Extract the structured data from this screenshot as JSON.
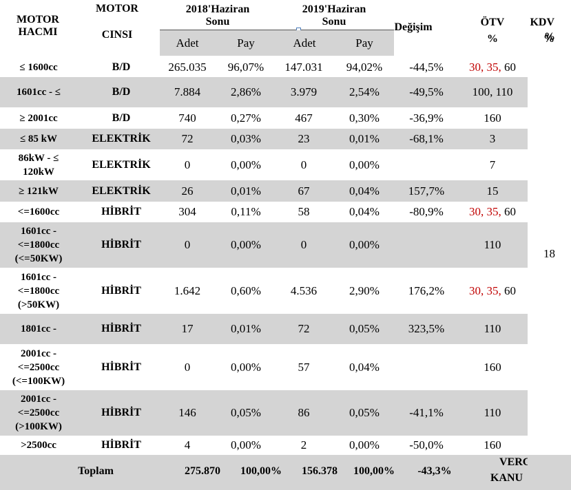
{
  "header": {
    "motor_hacmi": "MOTOR\nHACMI",
    "motor_cinsi_1": "MOTOR",
    "motor_cinsi_2": "CINSI",
    "year1": "2018'Haziran\nSonu",
    "year2": "2019'Haziran\nSonu",
    "degisim": "Değişim",
    "otv": "ÖTV\n%",
    "kdv": "KDV\n%",
    "adet": "Adet",
    "pay": "Pay"
  },
  "rows": [
    {
      "motor": "≤ 1600cc",
      "cinsi": "B/D",
      "adet1": "265.035",
      "pay1": "96,07%",
      "adet2": "147.031",
      "pay2": "94,02%",
      "degisim": "-44,5%",
      "otv_red": "30, 35,",
      "otv": " 60"
    },
    {
      "motor": "1601cc - ≤",
      "cinsi": "B/D",
      "adet1": "7.884",
      "pay1": "2,86%",
      "adet2": "3.979",
      "pay2": "2,54%",
      "degisim": "-49,5%",
      "otv_red": "",
      "otv": "100, 110"
    },
    {
      "motor": "≥ 2001cc",
      "cinsi": "B/D",
      "adet1": "740",
      "pay1": "0,27%",
      "adet2": "467",
      "pay2": "0,30%",
      "degisim": "-36,9%",
      "otv_red": "",
      "otv": "160"
    },
    {
      "motor": "≤ 85 kW",
      "cinsi": "ELEKTRİK",
      "adet1": "72",
      "pay1": "0,03%",
      "adet2": "23",
      "pay2": "0,01%",
      "degisim": "-68,1%",
      "otv_red": "",
      "otv": "3"
    },
    {
      "motor": "86kW - ≤\n120kW",
      "cinsi": "ELEKTRİK",
      "adet1": "0",
      "pay1": "0,00%",
      "adet2": "0",
      "pay2": "0,00%",
      "degisim": "",
      "otv_red": "",
      "otv": "7"
    },
    {
      "motor": "≥ 121kW",
      "cinsi": "ELEKTRİK",
      "adet1": "26",
      "pay1": "0,01%",
      "adet2": "67",
      "pay2": "0,04%",
      "degisim": "157,7%",
      "otv_red": "",
      "otv": "15"
    },
    {
      "motor": "<=1600cc",
      "cinsi": "HİBRİT",
      "adet1": "304",
      "pay1": "0,11%",
      "adet2": "58",
      "pay2": "0,04%",
      "degisim": "-80,9%",
      "otv_red": "30, 35,",
      "otv": " 60"
    },
    {
      "motor": "1601cc -\n<=1800cc\n(<=50KW)",
      "cinsi": "HİBRİT",
      "adet1": "0",
      "pay1": "0,00%",
      "adet2": "0",
      "pay2": "0,00%",
      "degisim": "",
      "otv_red": "",
      "otv": "110"
    },
    {
      "motor": "1601cc -\n<=1800cc\n(>50KW)",
      "cinsi": "HİBRİT",
      "adet1": "1.642",
      "pay1": "0,60%",
      "adet2": "4.536",
      "pay2": "2,90%",
      "degisim": "176,2%",
      "otv_red": "30, 35,",
      "otv": " 60"
    },
    {
      "motor": "1801cc -",
      "cinsi": "HİBRİT",
      "adet1": "17",
      "pay1": "0,01%",
      "adet2": "72",
      "pay2": "0,05%",
      "degisim": "323,5%",
      "otv_red": "",
      "otv": "110"
    },
    {
      "motor": "2001cc -\n<=2500cc\n(<=100KW)",
      "cinsi": "HİBRİT",
      "adet1": "0",
      "pay1": "0,00%",
      "adet2": "57",
      "pay2": "0,04%",
      "degisim": "",
      "otv_red": "",
      "otv": "160"
    },
    {
      "motor": "2001cc -\n<=2500cc\n(>100KW)",
      "cinsi": "HİBRİT",
      "adet1": "146",
      "pay1": "0,05%",
      "adet2": "86",
      "pay2": "0,05%",
      "degisim": "-41,1%",
      "otv_red": "",
      "otv": "110"
    },
    {
      "motor": ">2500cc",
      "cinsi": "HİBRİT",
      "adet1": "4",
      "pay1": "0,00%",
      "adet2": "2",
      "pay2": "0,00%",
      "degisim": "-50,0%",
      "otv_red": "",
      "otv": "160"
    }
  ],
  "kdv_value": "18",
  "total": {
    "label": "Toplam",
    "adet1": "275.870",
    "pay1": "100,00%",
    "adet2": "156.378",
    "pay2": "100,00%",
    "degisim": "-43,3%",
    "vergi_1": "VERG",
    "vergi_2": "KANU"
  },
  "colors": {
    "band": "#d4d4d4",
    "red": "#c00000"
  }
}
